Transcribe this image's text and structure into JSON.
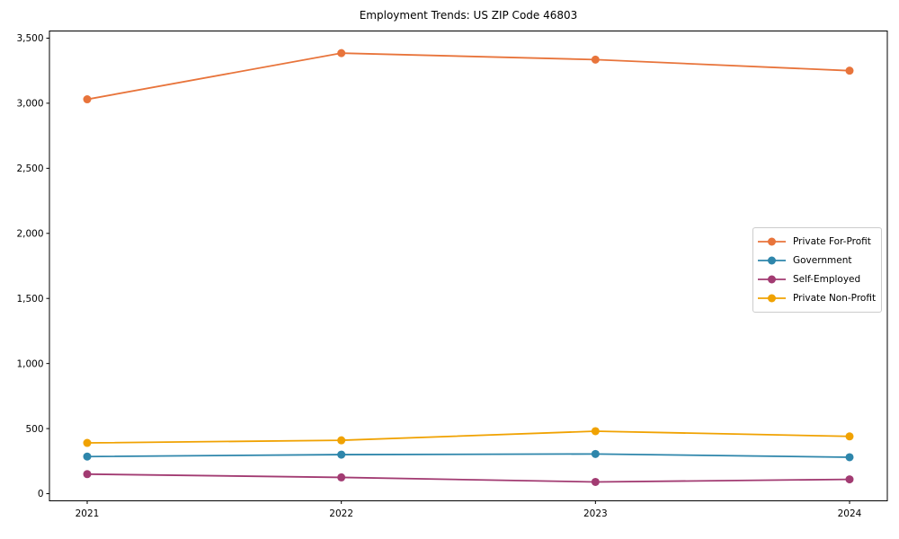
{
  "chart_data": {
    "type": "line",
    "title": "Employment Trends: US ZIP Code 46803",
    "xlabel": "",
    "ylabel": "",
    "categories": [
      "2021",
      "2022",
      "2023",
      "2024"
    ],
    "series": [
      {
        "name": "Private For-Profit",
        "color": "#e8743b",
        "values": [
          3030,
          3385,
          3335,
          3250
        ]
      },
      {
        "name": "Government",
        "color": "#2e86ab",
        "values": [
          285,
          300,
          305,
          280
        ]
      },
      {
        "name": "Self-Employed",
        "color": "#a23b72",
        "values": [
          150,
          125,
          90,
          110
        ]
      },
      {
        "name": "Private Non-Profit",
        "color": "#f0a202",
        "values": [
          390,
          410,
          480,
          440
        ]
      }
    ],
    "marker": "circle",
    "grid": false,
    "ylim": [
      -55,
      3555
    ],
    "yticks": [
      0,
      500,
      1000,
      1500,
      2000,
      2500,
      3000,
      3500
    ],
    "ytick_labels": [
      "0",
      "500",
      "1,000",
      "1,500",
      "2,000",
      "2,500",
      "3,000",
      "3,500"
    ],
    "legend": {
      "position": "center-right",
      "border_color": "#cccccc"
    },
    "axis_color": "#000000",
    "text_color": "#000000"
  }
}
